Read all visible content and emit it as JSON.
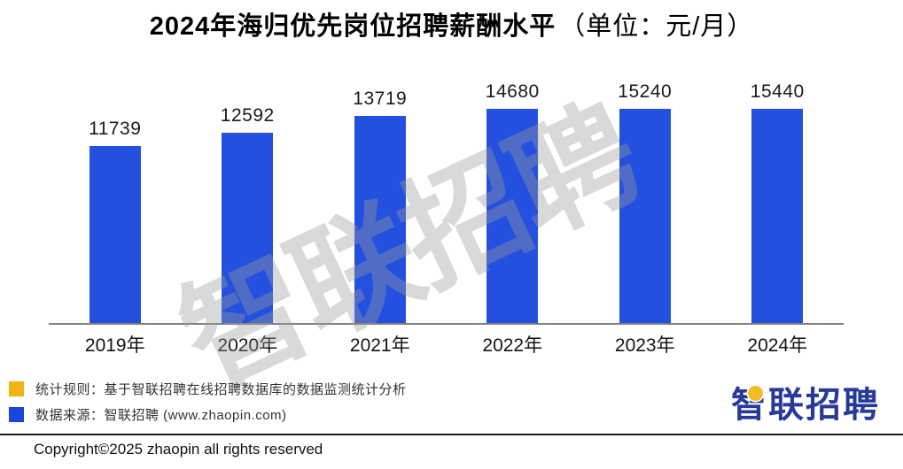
{
  "title": {
    "main": "2024年海归优先岗位招聘薪酬水平",
    "unit": "（单位：元/月）"
  },
  "chart_data": {
    "type": "bar",
    "title": "2024年海归优先岗位招聘薪酬水平（单位：元/月）",
    "categories": [
      "2019年",
      "2020年",
      "2021年",
      "2022年",
      "2023年",
      "2024年"
    ],
    "values": [
      11739,
      12592,
      13719,
      14680,
      15240,
      15440
    ],
    "xlabel": "",
    "ylabel": "",
    "ylim": [
      0,
      16000
    ],
    "grid": false,
    "legend_position": "none",
    "data_labels": true,
    "bar_color": "#2350DE",
    "axis_line_color": "#7f7f7f"
  },
  "watermark": {
    "text": "智联招聘",
    "color": "rgba(155,155,155,0.38)",
    "rotation_deg": -25
  },
  "legend": [
    {
      "swatch_color": "#EFB411",
      "label": "统计规则：基于智联招聘在线招聘数据库的数据监测统计分析"
    },
    {
      "swatch_color": "#1C46DB",
      "label": "数据来源：智联招聘 (www.zhaopin.com)"
    }
  ],
  "footer": {
    "copyright": "Copyright©2025 zhaopin all rights reserved",
    "logo_text": "智联招聘",
    "logo_color": "#283A97",
    "logo_dot_color": "#F2BE25"
  }
}
